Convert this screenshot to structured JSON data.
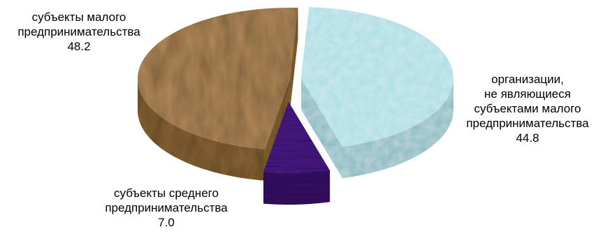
{
  "chart_data": {
    "type": "pie",
    "style": "3d-exploded",
    "slices": [
      {
        "label_lines": [
          "организации,",
          "не являющиеся",
          "субъектами малого",
          "предпринимательства"
        ],
        "value": 44.8,
        "value_text": "44.8",
        "color": "#a9dde4",
        "side_color": "#86b9c1"
      },
      {
        "label_lines": [
          "субъекты среднего",
          "предпринимательства"
        ],
        "value": 7.0,
        "value_text": "7.0",
        "color": "#4c1d87",
        "side_color": "#3a1269"
      },
      {
        "label_lines": [
          "субъекты малого",
          "предпринимательства"
        ],
        "value": 48.2,
        "value_text": "48.2",
        "color": "#b48a5a",
        "side_color": "#8a6539"
      }
    ]
  }
}
